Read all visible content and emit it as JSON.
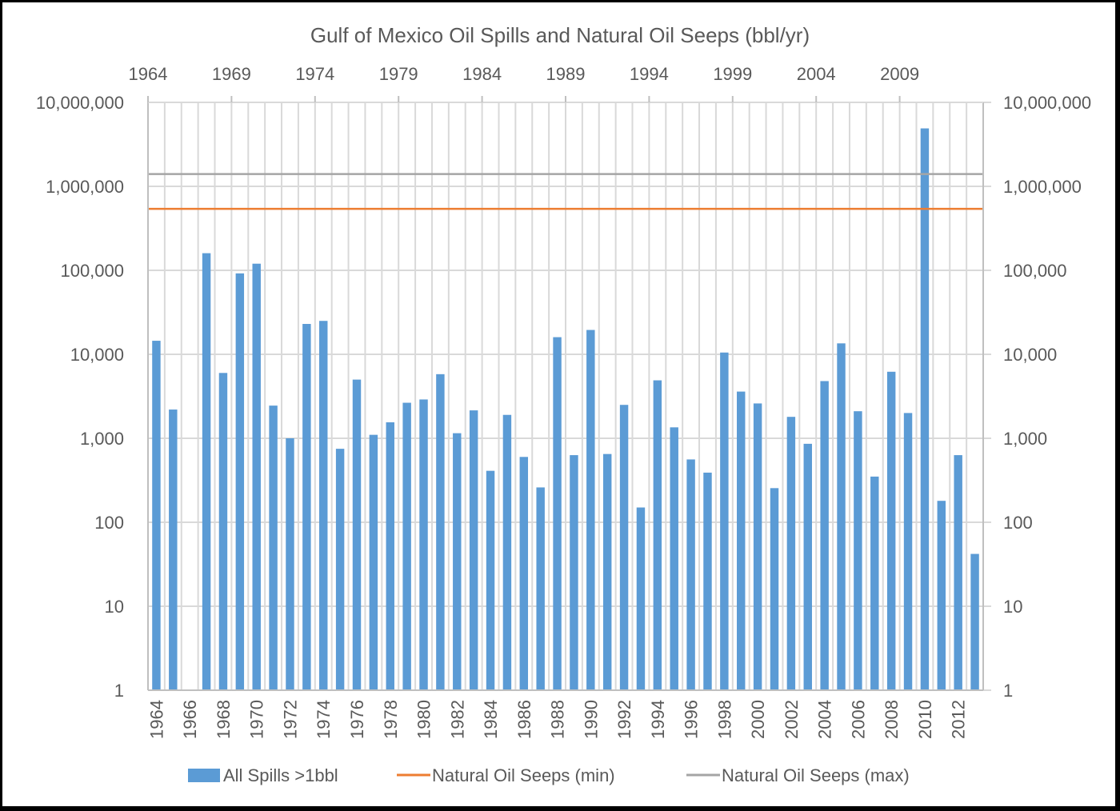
{
  "chart_data": {
    "type": "bar",
    "title": "Gulf of Mexico Oil Spills and Natural Oil Seeps (bbl/yr)",
    "xlabel": "",
    "ylabel": "",
    "yscale": "log",
    "ylim": [
      1,
      10000000
    ],
    "y_ticks": [
      "1",
      "10",
      "100",
      "1,000",
      "10,000",
      "100,000",
      "1,000,000",
      "10,000,000"
    ],
    "y_tick_values": [
      1,
      10,
      100,
      1000,
      10000,
      100000,
      1000000,
      10000000
    ],
    "secondary_x_ticks": [
      "1964",
      "1969",
      "1974",
      "1979",
      "1984",
      "1989",
      "1994",
      "1999",
      "2004",
      "2009"
    ],
    "categories": [
      "1964",
      "1965",
      "1966",
      "1967",
      "1968",
      "1969",
      "1970",
      "1971",
      "1972",
      "1973",
      "1974",
      "1975",
      "1976",
      "1977",
      "1978",
      "1979",
      "1980",
      "1981",
      "1982",
      "1983",
      "1984",
      "1985",
      "1986",
      "1987",
      "1988",
      "1989",
      "1990",
      "1991",
      "1992",
      "1993",
      "1994",
      "1995",
      "1996",
      "1997",
      "1998",
      "1999",
      "2000",
      "2001",
      "2002",
      "2003",
      "2004",
      "2005",
      "2006",
      "2007",
      "2008",
      "2009",
      "2010",
      "2011",
      "2012",
      "2013"
    ],
    "x_tick_labels": [
      "1964",
      "1966",
      "1968",
      "1970",
      "1972",
      "1974",
      "1976",
      "1978",
      "1980",
      "1982",
      "1984",
      "1986",
      "1988",
      "1990",
      "1992",
      "1994",
      "1996",
      "1998",
      "2000",
      "2002",
      "2004",
      "2006",
      "2008",
      "2010",
      "2012"
    ],
    "grid": true,
    "legend_position": "bottom",
    "series": [
      {
        "name": "All Spills >1bbl",
        "type": "bar",
        "color": "#5B9BD5",
        "values": [
          14500,
          2200,
          null,
          160000,
          6000,
          92000,
          120000,
          2450,
          1000,
          23000,
          25000,
          750,
          5000,
          1100,
          1550,
          2650,
          2900,
          5800,
          1150,
          2150,
          410,
          1900,
          600,
          260,
          16000,
          630,
          19500,
          650,
          2500,
          150,
          4900,
          1350,
          560,
          390,
          10500,
          3600,
          2600,
          255,
          1800,
          860,
          4800,
          13500,
          2100,
          350,
          6200,
          2000,
          4900000,
          180,
          630,
          42
        ]
      },
      {
        "name": "Natural Oil Seeps (min)",
        "type": "line",
        "color": "#ED7D31",
        "value": 540000
      },
      {
        "name": "Natural Oil Seeps (max)",
        "type": "line",
        "color": "#A5A5A5",
        "value": 1400000
      }
    ]
  }
}
